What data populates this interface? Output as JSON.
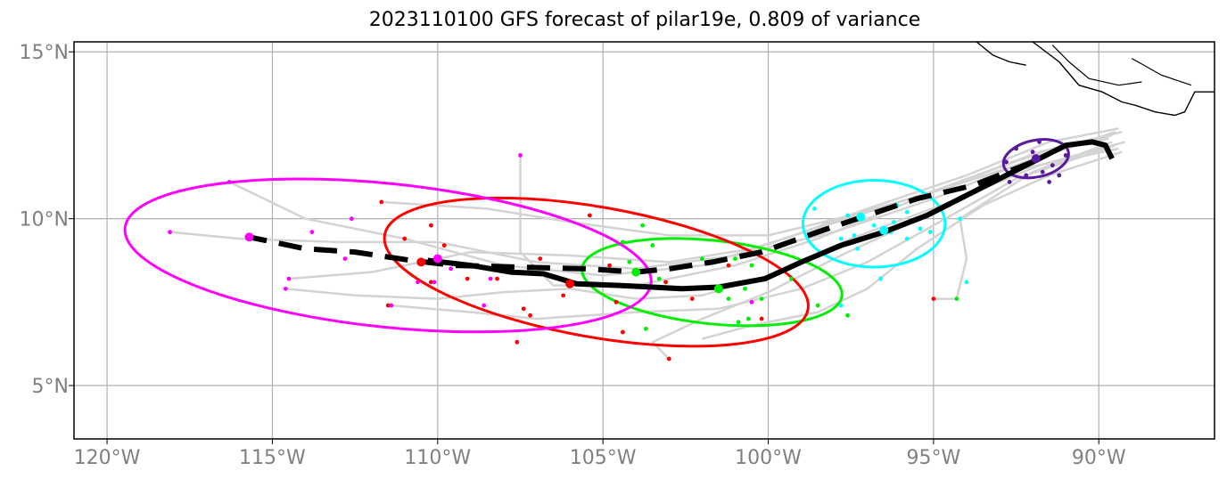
{
  "title": "2023110100 GFS forecast of pilar19e, 0.809 of variance",
  "map": {
    "lon_range": [
      -121,
      -86.5
    ],
    "lat_range": [
      3.4,
      15.3
    ],
    "lon_ticks": [
      {
        "value": -120,
        "label": "120°W"
      },
      {
        "value": -115,
        "label": "115°W"
      },
      {
        "value": -110,
        "label": "110°W"
      },
      {
        "value": -105,
        "label": "105°W"
      },
      {
        "value": -100,
        "label": "100°W"
      },
      {
        "value": -95,
        "label": "95°W"
      },
      {
        "value": -90,
        "label": "90°W"
      }
    ],
    "lat_ticks": [
      {
        "value": 5,
        "label": "5°N"
      },
      {
        "value": 10,
        "label": "10°N"
      },
      {
        "value": 15,
        "label": "15°N"
      }
    ],
    "gridlines": true,
    "coastline": [
      [
        -92.0,
        15.3
      ],
      [
        -91.2,
        14.7
      ],
      [
        -90.6,
        14.0
      ],
      [
        -89.9,
        13.8
      ],
      [
        -89.3,
        13.5
      ],
      [
        -88.9,
        13.4
      ],
      [
        -88.3,
        13.2
      ],
      [
        -87.7,
        13.1
      ],
      [
        -87.4,
        13.2
      ],
      [
        -87.1,
        13.8
      ],
      [
        -86.5,
        13.8
      ]
    ],
    "coastline_west": [
      [
        -93.7,
        15.3
      ],
      [
        -93.2,
        14.9
      ],
      [
        -92.7,
        14.7
      ],
      [
        -92.2,
        14.6
      ]
    ],
    "border_lines": [
      [
        [
          -91.4,
          15.2
        ],
        [
          -90.9,
          14.7
        ],
        [
          -90.3,
          14.2
        ],
        [
          -89.4,
          14.0
        ],
        [
          -88.7,
          14.1
        ]
      ],
      [
        [
          -89.0,
          14.8
        ],
        [
          -88.1,
          14.3
        ],
        [
          -87.2,
          14.0
        ]
      ]
    ],
    "colors": {
      "ensemble_tracks": "#d3d3d3",
      "mean_track": "#000000",
      "magenta": "#ff00ff",
      "red": "#ff0000",
      "green": "#00ee00",
      "cyan": "#00ffff",
      "purple": "#5b1a9e"
    }
  },
  "chart_data": {
    "type": "map_tracks",
    "mean_track_solid": [
      [
        -89.6,
        11.8
      ],
      [
        -89.8,
        12.2
      ],
      [
        -90.2,
        12.3
      ],
      [
        -91.0,
        12.2
      ],
      [
        -92.0,
        11.7
      ],
      [
        -93.0,
        11.2
      ],
      [
        -94.2,
        10.6
      ],
      [
        -95.2,
        10.1
      ],
      [
        -96.5,
        9.6
      ],
      [
        -97.8,
        9.2
      ],
      [
        -99.0,
        8.7
      ],
      [
        -100.1,
        8.2
      ],
      [
        -101.5,
        7.95
      ],
      [
        -102.6,
        7.9
      ],
      [
        -103.5,
        7.95
      ],
      [
        -104.5,
        8.0
      ],
      [
        -105.8,
        8.05
      ],
      [
        -106.8,
        8.35
      ],
      [
        -107.8,
        8.4
      ],
      [
        -109.0,
        8.6
      ],
      [
        -110.3,
        8.75
      ]
    ],
    "mean_track_dashed": [
      [
        -92.0,
        11.7
      ],
      [
        -93.8,
        11.0
      ],
      [
        -95.5,
        10.6
      ],
      [
        -97.0,
        10.1
      ],
      [
        -98.5,
        9.6
      ],
      [
        -100.2,
        9.0
      ],
      [
        -101.7,
        8.7
      ],
      [
        -103.0,
        8.5
      ],
      [
        -104.0,
        8.4
      ],
      [
        -105.5,
        8.5
      ],
      [
        -107.5,
        8.55
      ],
      [
        -109.5,
        8.6
      ],
      [
        -110.8,
        8.75
      ],
      [
        -112.5,
        9.0
      ],
      [
        -114.0,
        9.1
      ],
      [
        -115.7,
        9.45
      ]
    ],
    "mean_positions": [
      {
        "color": "purple",
        "lon": -91.9,
        "lat": 11.8
      },
      {
        "color": "cyan",
        "lon": -96.5,
        "lat": 9.65
      },
      {
        "color": "cyan",
        "lon": -97.2,
        "lat": 10.05
      },
      {
        "color": "green",
        "lon": -101.5,
        "lat": 7.9
      },
      {
        "color": "green",
        "lon": -104.0,
        "lat": 8.4
      },
      {
        "color": "red",
        "lon": -106.0,
        "lat": 8.05
      },
      {
        "color": "red",
        "lon": -110.5,
        "lat": 8.7
      },
      {
        "color": "magenta",
        "lon": -110.0,
        "lat": 8.8
      },
      {
        "color": "magenta",
        "lon": -115.7,
        "lat": 9.45
      }
    ],
    "ellipses": [
      {
        "color": "purple",
        "center": [
          -91.9,
          11.8
        ],
        "width_deg": 2.0,
        "height_deg": 1.1,
        "angle_deg": 12
      },
      {
        "color": "cyan",
        "center": [
          -96.8,
          9.85
        ],
        "width_deg": 4.3,
        "height_deg": 2.6,
        "angle_deg": 0
      },
      {
        "color": "green",
        "center": [
          -101.7,
          8.1
        ],
        "width_deg": 7.9,
        "height_deg": 2.5,
        "angle_deg": -6
      },
      {
        "color": "red",
        "center": [
          -105.2,
          8.4
        ],
        "width_deg": 13.0,
        "height_deg": 3.9,
        "angle_deg": -10
      },
      {
        "color": "magenta",
        "center": [
          -111.5,
          8.9
        ],
        "width_deg": 16.0,
        "height_deg": 4.3,
        "angle_deg": -6
      }
    ],
    "member_points": {
      "purple": [
        [
          -92.8,
          11.7
        ],
        [
          -92.4,
          11.5
        ],
        [
          -92.0,
          12.0
        ],
        [
          -91.6,
          11.9
        ],
        [
          -91.2,
          12.1
        ],
        [
          -91.4,
          11.6
        ],
        [
          -92.2,
          11.3
        ],
        [
          -91.7,
          11.4
        ],
        [
          -91.2,
          11.3
        ],
        [
          -92.7,
          11.1
        ],
        [
          -91.5,
          11.1
        ],
        [
          -92.5,
          12.1
        ],
        [
          -91.0,
          11.9
        ],
        [
          -91.8,
          12.3
        ]
      ],
      "cyan": [
        [
          -98.6,
          10.3
        ],
        [
          -97.6,
          10.1
        ],
        [
          -97.4,
          9.5
        ],
        [
          -97.3,
          9.1
        ],
        [
          -96.8,
          9.8
        ],
        [
          -96.2,
          9.9
        ],
        [
          -96.3,
          9.6
        ],
        [
          -95.8,
          10.2
        ],
        [
          -95.4,
          9.7
        ],
        [
          -95.1,
          9.6
        ],
        [
          -94.2,
          10.0
        ],
        [
          -94.0,
          8.1
        ],
        [
          -96.6,
          8.2
        ],
        [
          -97.8,
          7.4
        ],
        [
          -97.8,
          9.4
        ],
        [
          -95.8,
          9.4
        ],
        [
          -96.1,
          10.4
        ]
      ],
      "green": [
        [
          -104.4,
          9.3
        ],
        [
          -103.5,
          9.2
        ],
        [
          -103.8,
          9.8
        ],
        [
          -104.2,
          8.7
        ],
        [
          -102.0,
          8.8
        ],
        [
          -101.0,
          8.8
        ],
        [
          -100.5,
          8.6
        ],
        [
          -101.2,
          7.6
        ],
        [
          -100.7,
          7.9
        ],
        [
          -100.2,
          7.6
        ],
        [
          -102.9,
          7.9
        ],
        [
          -103.3,
          8.2
        ],
        [
          -103.7,
          6.7
        ],
        [
          -100.6,
          7.0
        ],
        [
          -100.9,
          6.9
        ],
        [
          -99.3,
          8.2
        ],
        [
          -97.6,
          7.1
        ],
        [
          -94.3,
          7.6
        ],
        [
          -98.5,
          7.4
        ]
      ],
      "red": [
        [
          -111.7,
          10.5
        ],
        [
          -111.0,
          9.4
        ],
        [
          -110.2,
          9.8
        ],
        [
          -109.8,
          9.2
        ],
        [
          -109.4,
          8.6
        ],
        [
          -109.1,
          8.2
        ],
        [
          -108.2,
          8.2
        ],
        [
          -107.4,
          7.3
        ],
        [
          -107.2,
          7.1
        ],
        [
          -107.6,
          6.3
        ],
        [
          -106.9,
          8.8
        ],
        [
          -106.2,
          7.7
        ],
        [
          -105.4,
          10.1
        ],
        [
          -104.8,
          8.6
        ],
        [
          -104.4,
          6.6
        ],
        [
          -104.6,
          7.5
        ],
        [
          -103.1,
          8.1
        ],
        [
          -103.0,
          5.8
        ],
        [
          -102.3,
          7.6
        ],
        [
          -100.2,
          7.0
        ],
        [
          -101.2,
          8.6
        ],
        [
          -95.0,
          7.6
        ],
        [
          -111.5,
          7.4
        ],
        [
          -110.2,
          8.1
        ]
      ],
      "magenta": [
        [
          -118.1,
          9.6
        ],
        [
          -116.3,
          11.1
        ],
        [
          -114.5,
          8.2
        ],
        [
          -114.6,
          7.9
        ],
        [
          -113.8,
          9.6
        ],
        [
          -112.6,
          10.0
        ],
        [
          -112.8,
          8.8
        ],
        [
          -111.4,
          7.4
        ],
        [
          -110.6,
          8.1
        ],
        [
          -110.1,
          8.1
        ],
        [
          -109.6,
          8.5
        ],
        [
          -108.4,
          8.2
        ],
        [
          -108.6,
          7.4
        ],
        [
          -107.5,
          11.9
        ],
        [
          -100.5,
          7.5
        ]
      ]
    },
    "ensemble_tracks": [
      [
        [
          -89.4,
          12.7
        ],
        [
          -91.5,
          12.3
        ],
        [
          -94.0,
          11.3
        ],
        [
          -97.0,
          10.3
        ],
        [
          -99.5,
          9.4
        ],
        [
          -102.0,
          8.6
        ],
        [
          -105.0,
          8.3
        ],
        [
          -108.0,
          8.6
        ],
        [
          -111.0,
          9.4
        ],
        [
          -114.0,
          10.0
        ],
        [
          -116.3,
          11.1
        ]
      ],
      [
        [
          -89.6,
          12.5
        ],
        [
          -92.0,
          11.8
        ],
        [
          -95.0,
          10.6
        ],
        [
          -98.0,
          9.6
        ],
        [
          -101.0,
          8.9
        ],
        [
          -104.0,
          8.5
        ],
        [
          -107.0,
          8.7
        ],
        [
          -110.0,
          9.3
        ],
        [
          -113.0,
          9.3
        ],
        [
          -116.0,
          9.4
        ],
        [
          -118.1,
          9.6
        ]
      ],
      [
        [
          -89.2,
          12.3
        ],
        [
          -91.8,
          11.6
        ],
        [
          -94.5,
          10.5
        ],
        [
          -97.5,
          9.4
        ],
        [
          -100.0,
          8.3
        ],
        [
          -102.0,
          7.7
        ],
        [
          -104.0,
          7.6
        ],
        [
          -106.0,
          7.9
        ],
        [
          -108.0,
          7.8
        ],
        [
          -110.0,
          7.6
        ],
        [
          -112.5,
          7.7
        ],
        [
          -114.6,
          7.9
        ]
      ],
      [
        [
          -89.4,
          12.1
        ],
        [
          -92.3,
          11.5
        ],
        [
          -95.2,
          10.1
        ],
        [
          -97.8,
          8.9
        ],
        [
          -100.0,
          7.8
        ],
        [
          -102.0,
          7.0
        ],
        [
          -103.5,
          6.3
        ],
        [
          -103.0,
          5.8
        ]
      ],
      [
        [
          -89.5,
          12.6
        ],
        [
          -92.5,
          11.6
        ],
        [
          -95.0,
          10.8
        ],
        [
          -97.5,
          10.1
        ],
        [
          -100.0,
          9.5
        ],
        [
          -103.0,
          9.5
        ],
        [
          -106.0,
          9.9
        ],
        [
          -108.5,
          10.3
        ],
        [
          -111.7,
          10.5
        ]
      ],
      [
        [
          -89.3,
          12.0
        ],
        [
          -91.5,
          11.3
        ],
        [
          -93.5,
          10.4
        ],
        [
          -95.5,
          9.1
        ],
        [
          -97.0,
          7.9
        ],
        [
          -98.5,
          7.2
        ],
        [
          -100.5,
          6.8
        ],
        [
          -102.0,
          6.4
        ]
      ],
      [
        [
          -89.7,
          12.4
        ],
        [
          -92.0,
          11.9
        ],
        [
          -94.5,
          11.0
        ],
        [
          -96.5,
          10.2
        ],
        [
          -98.5,
          9.4
        ],
        [
          -101.0,
          8.6
        ],
        [
          -104.0,
          8.0
        ],
        [
          -106.5,
          8.0
        ],
        [
          -107.5,
          9.0
        ],
        [
          -107.5,
          11.9
        ]
      ],
      [
        [
          -89.3,
          12.6
        ],
        [
          -91.8,
          12.0
        ],
        [
          -94.8,
          10.9
        ],
        [
          -97.6,
          10.0
        ],
        [
          -100.5,
          9.1
        ],
        [
          -103.0,
          8.7
        ],
        [
          -106.0,
          8.9
        ],
        [
          -109.0,
          9.0
        ],
        [
          -112.0,
          8.4
        ],
        [
          -114.5,
          8.2
        ]
      ],
      [
        [
          -89.5,
          12.2
        ],
        [
          -92.5,
          11.2
        ],
        [
          -95.0,
          9.8
        ],
        [
          -97.0,
          8.7
        ],
        [
          -99.0,
          7.9
        ],
        [
          -101.5,
          7.3
        ],
        [
          -104.0,
          7.2
        ],
        [
          -107.0,
          7.0
        ],
        [
          -109.0,
          7.2
        ],
        [
          -111.4,
          7.4
        ]
      ],
      [
        [
          -89.6,
          12.3
        ],
        [
          -92.0,
          11.4
        ],
        [
          -94.2,
          10.0
        ],
        [
          -94.0,
          8.8
        ],
        [
          -94.3,
          7.6
        ],
        [
          -95.0,
          7.6
        ]
      ]
    ],
    "axis_lon_label": "",
    "axis_lat_label": ""
  }
}
